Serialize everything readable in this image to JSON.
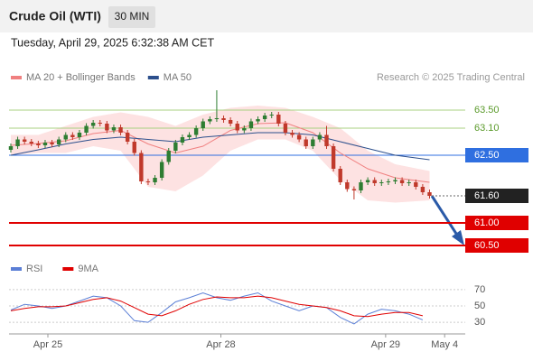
{
  "header": {
    "title": "Crude Oil (WTI)",
    "timeframe": "30 MIN",
    "datetime": "Tuesday, April 29, 2025 6:32:38 AM CET"
  },
  "chart_data": [
    {
      "type": "candlestick",
      "source": "Research © 2025 Trading Central",
      "xlim": [
        -0.26,
        66.2
      ],
      "xticks": [
        {
          "value": 5.4,
          "label": "Apr 25"
        },
        {
          "value": 30.6,
          "label": "Apr 28"
        },
        {
          "value": 54.6,
          "label": "Apr 29"
        },
        {
          "value": 63.2,
          "label": "May 4"
        }
      ],
      "ylim": [
        60.24,
        64.04
      ],
      "up_color": "#2e7d32",
      "down_color": "#c0392b",
      "candles": {
        "open": [
          62.62,
          62.7,
          62.85,
          62.8,
          62.76,
          62.72,
          62.78,
          62.74,
          62.85,
          62.95,
          62.9,
          63.0,
          63.15,
          63.22,
          63.2,
          63.05,
          63.12,
          63.0,
          62.8,
          62.55,
          61.92,
          61.9,
          62.0,
          62.35,
          62.6,
          62.78,
          62.9,
          62.95,
          63.1,
          63.25,
          63.3,
          63.32,
          63.28,
          63.2,
          63.05,
          63.1,
          63.25,
          63.3,
          63.38,
          63.4,
          63.2,
          63.0,
          62.95,
          62.85,
          62.7,
          62.85,
          62.95,
          62.7,
          62.2,
          61.9,
          61.75,
          61.72,
          61.9,
          61.95,
          61.88,
          61.9,
          61.92,
          61.95,
          61.88,
          61.9,
          61.8,
          61.68
        ],
        "high": [
          62.76,
          62.91,
          62.91,
          62.86,
          62.82,
          62.84,
          62.84,
          62.91,
          63.01,
          63.01,
          63.06,
          63.21,
          63.28,
          63.28,
          63.26,
          63.18,
          63.18,
          63.06,
          62.86,
          62.61,
          61.98,
          62.06,
          62.41,
          62.66,
          62.84,
          62.96,
          63.01,
          63.16,
          63.31,
          63.36,
          63.94,
          63.38,
          63.34,
          63.26,
          63.16,
          63.31,
          63.36,
          63.44,
          63.46,
          63.46,
          63.26,
          63.06,
          63.01,
          62.91,
          62.91,
          63.01,
          63.15,
          62.76,
          62.26,
          61.96,
          61.81,
          61.96,
          62.01,
          62.01,
          61.96,
          61.98,
          62.01,
          62.01,
          61.96,
          61.96,
          61.86,
          61.74
        ],
        "low": [
          62.56,
          62.64,
          62.74,
          62.7,
          62.66,
          62.66,
          62.68,
          62.68,
          62.79,
          62.84,
          62.84,
          62.94,
          63.09,
          63.14,
          62.99,
          62.99,
          62.94,
          62.74,
          62.49,
          61.86,
          61.84,
          61.84,
          61.94,
          62.29,
          62.54,
          62.72,
          62.84,
          62.89,
          63.04,
          63.19,
          63.24,
          63.22,
          63.14,
          62.99,
          62.99,
          63.04,
          63.19,
          63.24,
          63.32,
          63.14,
          62.94,
          62.89,
          62.79,
          62.64,
          62.64,
          62.79,
          62.64,
          62.14,
          61.84,
          61.69,
          61.52,
          61.66,
          61.84,
          61.82,
          61.82,
          61.84,
          61.86,
          61.82,
          61.82,
          61.74,
          61.62,
          61.54
        ],
        "close": [
          62.7,
          62.85,
          62.8,
          62.76,
          62.72,
          62.78,
          62.74,
          62.85,
          62.95,
          62.9,
          63.0,
          63.15,
          63.22,
          63.2,
          63.05,
          63.12,
          63.0,
          62.8,
          62.55,
          61.92,
          61.9,
          62.0,
          62.35,
          62.6,
          62.78,
          62.9,
          62.95,
          63.1,
          63.25,
          63.3,
          63.32,
          63.28,
          63.2,
          63.05,
          63.1,
          63.25,
          63.3,
          63.38,
          63.4,
          63.2,
          63.0,
          62.95,
          62.85,
          62.7,
          62.85,
          62.95,
          62.7,
          62.2,
          61.9,
          61.75,
          61.72,
          61.9,
          61.95,
          61.88,
          61.9,
          61.92,
          61.95,
          61.88,
          61.9,
          61.8,
          61.68,
          61.6
        ]
      },
      "overlay_x": [
        0,
        4,
        8,
        12,
        16,
        20,
        24,
        28,
        32,
        36,
        40,
        44,
        48,
        52,
        56,
        61
      ],
      "lines": [
        {
          "name": "MA 20 + Bollinger Bands",
          "color": "#f08080",
          "values": [
            62.72,
            62.76,
            62.82,
            62.98,
            63.05,
            62.75,
            62.55,
            62.7,
            63.05,
            63.2,
            63.22,
            63.0,
            62.55,
            62.2,
            62.0,
            61.9
          ]
        },
        {
          "name": "MA 50",
          "color": "#2c4f8c",
          "values": [
            62.5,
            62.62,
            62.75,
            62.85,
            62.9,
            62.85,
            62.8,
            62.9,
            62.95,
            63.0,
            63.0,
            62.95,
            62.8,
            62.65,
            62.5,
            62.4
          ]
        }
      ],
      "bollinger": {
        "color": "#fde2e2",
        "upper": [
          62.95,
          62.95,
          63.15,
          63.35,
          63.45,
          63.35,
          63.15,
          63.4,
          63.55,
          63.6,
          63.55,
          63.35,
          63.1,
          62.6,
          62.3,
          62.15
        ],
        "lower": [
          62.5,
          62.55,
          62.55,
          62.7,
          62.6,
          61.8,
          61.7,
          62.05,
          62.6,
          62.85,
          62.85,
          62.6,
          61.95,
          61.5,
          61.45,
          61.5
        ]
      },
      "levels": [
        {
          "value": 63.5,
          "label": "63.50",
          "color": "#a8d080",
          "box": false
        },
        {
          "value": 63.1,
          "label": "63.10",
          "color": "#a8d080",
          "box": false
        },
        {
          "value": 62.5,
          "label": "62.50",
          "color": "#2f6fe0",
          "box": true
        },
        {
          "value": 61.6,
          "label": "61.60",
          "color": "#222222",
          "box": true,
          "dotted": true
        },
        {
          "value": 61.0,
          "label": "61.00",
          "color": "#e00000",
          "box": true
        },
        {
          "value": 60.5,
          "label": "60.50",
          "color": "#e00000",
          "box": true
        }
      ]
    },
    {
      "type": "line",
      "xlim": [
        -0.26,
        66.2
      ],
      "ylim": [
        18,
        82
      ],
      "yticks": [
        30,
        50,
        70
      ],
      "x": [
        0,
        2,
        4,
        6,
        8,
        10,
        12,
        14,
        16,
        18,
        20,
        22,
        24,
        26,
        28,
        30,
        32,
        34,
        36,
        38,
        40,
        42,
        44,
        46,
        48,
        50,
        52,
        54,
        56,
        58,
        60
      ],
      "series": [
        {
          "name": "RSI",
          "color": "#5b7fd6",
          "values": [
            45,
            52,
            50,
            47,
            50,
            56,
            62,
            60,
            50,
            32,
            30,
            42,
            55,
            60,
            66,
            60,
            57,
            62,
            66,
            56,
            50,
            44,
            50,
            48,
            36,
            28,
            40,
            46,
            44,
            40,
            33
          ]
        },
        {
          "name": "9MA",
          "color": "#e00000",
          "values": [
            44,
            47,
            49,
            49,
            50,
            54,
            58,
            60,
            56,
            48,
            40,
            38,
            44,
            52,
            58,
            61,
            60,
            60,
            62,
            60,
            56,
            52,
            50,
            48,
            44,
            38,
            37,
            40,
            42,
            42,
            38
          ]
        }
      ]
    }
  ]
}
